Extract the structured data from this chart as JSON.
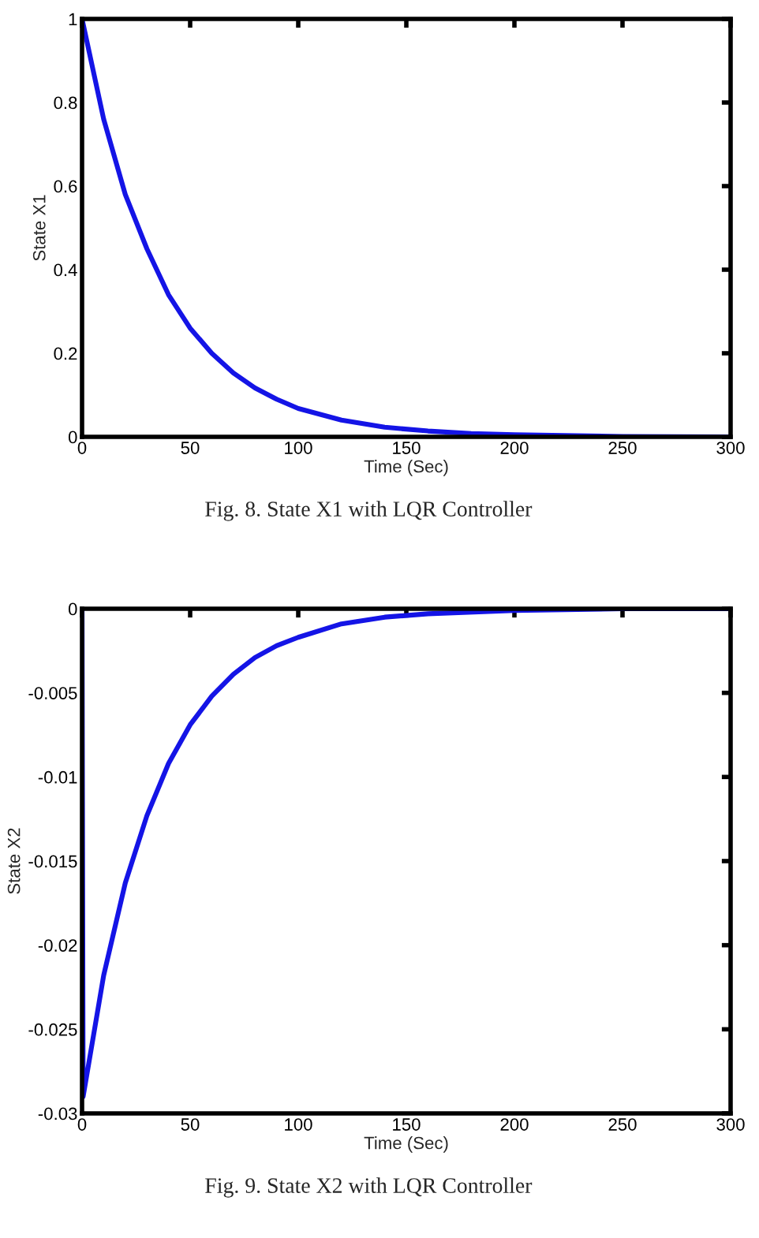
{
  "chart_data": [
    {
      "type": "line",
      "xlabel": "Time (Sec)",
      "ylabel": "State X1",
      "annotations": [
        "Fig. 8. State X1 with LQR Controller"
      ],
      "x": [
        0,
        10,
        20,
        30,
        40,
        50,
        60,
        70,
        80,
        90,
        100,
        120,
        140,
        160,
        180,
        200,
        250,
        300
      ],
      "series": [
        {
          "color": "#1414e6",
          "values": [
            1,
            0.76,
            0.58,
            0.45,
            0.34,
            0.26,
            0.2,
            0.153,
            0.117,
            0.09,
            0.068,
            0.04,
            0.023,
            0.014,
            0.008,
            0.005,
            0.001,
            0
          ]
        }
      ],
      "xlim": [
        0,
        300
      ],
      "xticks": [
        0,
        50,
        100,
        150,
        200,
        250,
        300
      ],
      "ylim": [
        0,
        1
      ],
      "yticks": [
        0,
        0.2,
        0.4,
        0.6,
        0.8,
        1
      ],
      "grid": false
    },
    {
      "type": "line",
      "xlabel": "Time (Sec)",
      "ylabel": "State X2",
      "annotations": [
        "Fig. 9. State X2 with LQR Controller"
      ],
      "x": [
        0,
        0.5,
        10,
        20,
        30,
        40,
        50,
        60,
        70,
        80,
        90,
        100,
        120,
        140,
        160,
        200,
        250,
        300
      ],
      "series": [
        {
          "color": "#1414e6",
          "values": [
            0,
            -0.029,
            -0.0218,
            -0.0163,
            -0.0123,
            -0.0092,
            -0.0069,
            -0.0052,
            -0.0039,
            -0.0029,
            -0.0022,
            -0.0017,
            -0.0009,
            -0.0005,
            -0.0003,
            -0.0001,
            0,
            0
          ]
        }
      ],
      "xlim": [
        0,
        300
      ],
      "xticks": [
        0,
        50,
        100,
        150,
        200,
        250,
        300
      ],
      "ylim": [
        -0.03,
        0
      ],
      "yticks": [
        -0.03,
        -0.025,
        -0.02,
        -0.015,
        -0.01,
        -0.005,
        0
      ],
      "grid": false
    }
  ]
}
